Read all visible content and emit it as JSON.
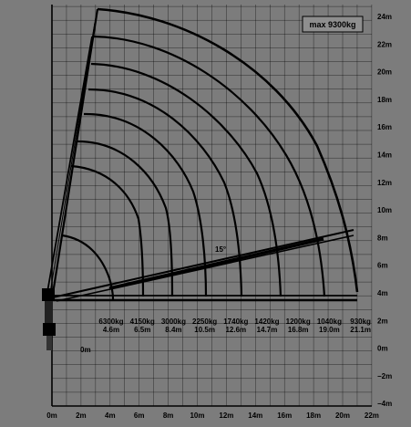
{
  "badge": "max 9300kg",
  "x_axis_labels": [
    "0m",
    "2m",
    "4m",
    "6m",
    "8m",
    "10m",
    "12m",
    "14m",
    "16m",
    "18m",
    "20m",
    "22m"
  ],
  "y_axis_labels": [
    "24m",
    "22m",
    "20m",
    "18m",
    "16m",
    "14m",
    "12m",
    "10m",
    "8m",
    "6m",
    "4m",
    "2m",
    "0m",
    "−2m",
    "−4m"
  ],
  "zero_label": "0m",
  "angle_label": "15°",
  "load_table": [
    {
      "kg": "6300kg",
      "reach": "4.6m"
    },
    {
      "kg": "4150kg",
      "reach": "6.5m"
    },
    {
      "kg": "3000kg",
      "reach": "8.4m"
    },
    {
      "kg": "2250kg",
      "reach": "10.5m"
    },
    {
      "kg": "1740kg",
      "reach": "12.6m"
    },
    {
      "kg": "1420kg",
      "reach": "14.7m"
    },
    {
      "kg": "1200kg",
      "reach": "16.8m"
    },
    {
      "kg": "1040kg",
      "reach": "19.0m"
    },
    {
      "kg": "930kg",
      "reach": "21.1m"
    }
  ],
  "colors": {
    "background": "#7c7c7c",
    "line": "#000000",
    "badge_fill": "#8e8e8e"
  },
  "icons": [
    "crane-base-icon"
  ]
}
